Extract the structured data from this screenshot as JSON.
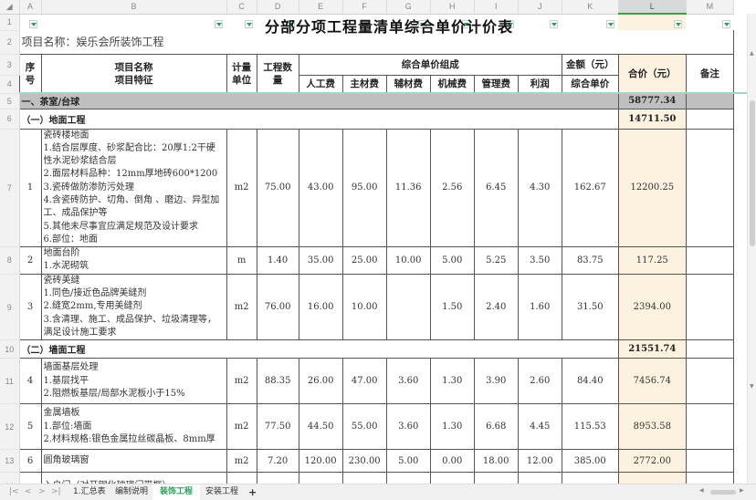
{
  "columns": [
    "A",
    "B",
    "C",
    "D",
    "E",
    "F",
    "G",
    "H",
    "I",
    "J",
    "K",
    "L",
    "M"
  ],
  "selected_column": "L",
  "title": "分部分项工程量清单综合单价计价表",
  "project_label": "项目名称：娱乐会所装饰工程",
  "header": {
    "seq": "序号",
    "name": "项目名称\n项目特征",
    "unit": "计量单位",
    "qty": "工程数量",
    "group": "综合单价组成",
    "labor": "人工费",
    "main": "主材费",
    "aux": "辅材费",
    "mech": "机械费",
    "mgmt": "管理费",
    "profit": "利润",
    "amount": "金额（元）",
    "unit_price": "综合单价",
    "total": "合价（元）",
    "remark": "备注"
  },
  "rows": [
    {
      "row": "5",
      "type": "major",
      "label": "一、茶室/台球",
      "total": "58777.34"
    },
    {
      "row": "6",
      "type": "section",
      "label": "（一）地面工程",
      "total": "14711.50"
    },
    {
      "row": "7",
      "type": "item",
      "no": "1",
      "desc": "瓷砖楼地面\n1.结合层厚度、砂浆配合比：20厚1:2干硬性水泥砂浆结合层\n2.面层材料品种：12mm厚地砖600*1200\n3.瓷砖做防渗防污处理\n4.含瓷砖防护、切角、倒角 、磨边、异型加工、成品保护等\n5.其他未尽事宜应满足规范及设计要求\n6.部位：地面",
      "unit": "m2",
      "qty": "75.00",
      "labor": "43.00",
      "main": "95.00",
      "aux": "11.36",
      "mech": "2.56",
      "mgmt": "6.45",
      "profit": "4.30",
      "unit_price": "162.67",
      "total": "12200.25"
    },
    {
      "row": "8",
      "type": "item",
      "no": "2",
      "desc": "地面台阶\n1.水泥砌筑",
      "unit": "m",
      "qty": "1.40",
      "labor": "35.00",
      "main": "25.00",
      "aux": "10.00",
      "mech": "5.00",
      "mgmt": "5.25",
      "profit": "3.50",
      "unit_price": "83.75",
      "total": "117.25"
    },
    {
      "row": "9",
      "type": "item",
      "no": "3",
      "desc": "瓷砖美缝\n1.同色/接近色品牌美缝剂\n2.缝宽2mm,专用美缝剂\n3.含清理、施工、成品保护、垃圾清理等，满足设计施工要求",
      "unit": "m2",
      "qty": "76.00",
      "labor": "16.00",
      "main": "10.00",
      "aux": "",
      "mech": "1.50",
      "mgmt": "2.40",
      "profit": "1.60",
      "unit_price": "31.50",
      "total": "2394.00"
    },
    {
      "row": "10",
      "type": "section",
      "label": "（二）墙面工程",
      "total": "21551.74"
    },
    {
      "row": "11",
      "type": "item",
      "no": "4",
      "desc": "墙面基层处理\n1.基层找平\n2.阻燃板基层/局部水泥板小于15%",
      "unit": "m2",
      "qty": "88.35",
      "labor": "26.00",
      "main": "47.00",
      "aux": "3.60",
      "mech": "1.30",
      "mgmt": "3.90",
      "profit": "2.60",
      "unit_price": "84.40",
      "total": "7456.74"
    },
    {
      "row": "12",
      "type": "item",
      "no": "5",
      "desc": "金属墙板\n1.部位:墙面\n2.材料规格:银色金属拉丝碳晶板、8mm厚",
      "unit": "m2",
      "qty": "77.50",
      "labor": "44.50",
      "main": "55.00",
      "aux": "3.60",
      "mech": "1.30",
      "mgmt": "6.68",
      "profit": "4.45",
      "unit_price": "115.53",
      "total": "8953.58"
    },
    {
      "row": "13",
      "type": "item",
      "no": "6",
      "desc": "圆角玻璃窗",
      "unit": "m2",
      "qty": "7.20",
      "labor": "120.00",
      "main": "230.00",
      "aux": "5.00",
      "mech": "0.00",
      "mgmt": "18.00",
      "profit": "12.00",
      "unit_price": "385.00",
      "total": "2772.00"
    },
    {
      "row": "14",
      "type": "item",
      "no": "",
      "desc": "入户门（对开钢化玻璃门带框）",
      "unit": "",
      "qty": "",
      "labor": "",
      "main": "",
      "aux": "",
      "mech": "",
      "mgmt": "",
      "profit": "",
      "unit_price": "",
      "total": ""
    }
  ],
  "row_heights": {},
  "sheet_tabs": [
    "1.汇总表",
    "编制说明",
    "装饰工程",
    "安装工程"
  ],
  "active_tab": "装饰工程",
  "add_tab": "+",
  "colors": {
    "accent": "#2a9d5a",
    "highlight_column": "#fcf2df",
    "major_row": "#bfbfbf"
  }
}
